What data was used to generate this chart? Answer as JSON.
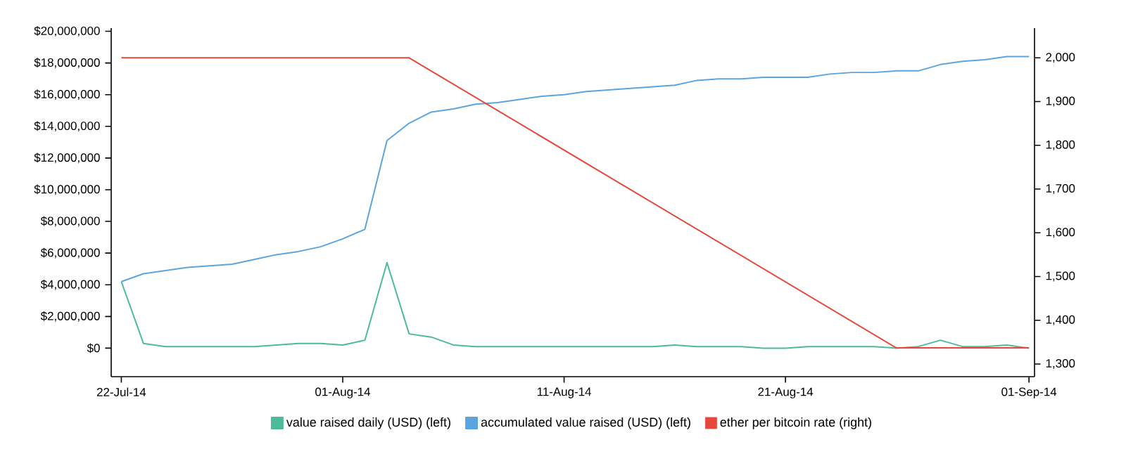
{
  "chart_data": {
    "type": "line",
    "legend": "bottom",
    "grid": false,
    "xlim": [
      "2014-07-21T13:00",
      "2014-09-01T06:00"
    ],
    "xticks": [
      {
        "value": "2014-07-22",
        "label": "22-Jul-14"
      },
      {
        "value": "2014-08-01",
        "label": "01-Aug-14"
      },
      {
        "value": "2014-08-11",
        "label": "11-Aug-14"
      },
      {
        "value": "2014-08-21",
        "label": "21-Aug-14"
      },
      {
        "value": "2014-09-01",
        "label": "01-Sep-14"
      }
    ],
    "ylim": [
      -1800000,
      20200000
    ],
    "yticks": [
      {
        "value": 0,
        "label": "$0"
      },
      {
        "value": 2000000,
        "label": "$2,000,000"
      },
      {
        "value": 4000000,
        "label": "$4,000,000"
      },
      {
        "value": 6000000,
        "label": "$6,000,000"
      },
      {
        "value": 8000000,
        "label": "$8,000,000"
      },
      {
        "value": 10000000,
        "label": "$10,000,000"
      },
      {
        "value": 12000000,
        "label": "$12,000,000"
      },
      {
        "value": 14000000,
        "label": "$14,000,000"
      },
      {
        "value": 16000000,
        "label": "$16,000,000"
      },
      {
        "value": 18000000,
        "label": "$18,000,000"
      },
      {
        "value": 20000000,
        "label": "$20,000,000"
      }
    ],
    "y2lim": [
      1271,
      2068
    ],
    "y2ticks": [
      {
        "value": 1300,
        "label": "1,300"
      },
      {
        "value": 1400,
        "label": "1,400"
      },
      {
        "value": 1500,
        "label": "1,500"
      },
      {
        "value": 1600,
        "label": "1,600"
      },
      {
        "value": 1700,
        "label": "1,700"
      },
      {
        "value": 1800,
        "label": "1,800"
      },
      {
        "value": 1900,
        "label": "1,900"
      },
      {
        "value": 2000,
        "label": "2,000"
      }
    ],
    "x": [
      "2014-07-22",
      "2014-07-23",
      "2014-07-24",
      "2014-07-25",
      "2014-07-26",
      "2014-07-27",
      "2014-07-28",
      "2014-07-29",
      "2014-07-30",
      "2014-07-31",
      "2014-08-01",
      "2014-08-02",
      "2014-08-03",
      "2014-08-04",
      "2014-08-05",
      "2014-08-06",
      "2014-08-07",
      "2014-08-08",
      "2014-08-09",
      "2014-08-10",
      "2014-08-11",
      "2014-08-12",
      "2014-08-13",
      "2014-08-14",
      "2014-08-15",
      "2014-08-16",
      "2014-08-17",
      "2014-08-18",
      "2014-08-19",
      "2014-08-20",
      "2014-08-21",
      "2014-08-22",
      "2014-08-23",
      "2014-08-24",
      "2014-08-25",
      "2014-08-26",
      "2014-08-27",
      "2014-08-28",
      "2014-08-29",
      "2014-08-30",
      "2014-08-31",
      "2014-09-01"
    ],
    "series": [
      {
        "name": "value raised daily (USD) (left)",
        "color": "#4dbb9a",
        "values": [
          4200000,
          300000,
          100000,
          100000,
          100000,
          100000,
          100000,
          200000,
          300000,
          300000,
          200000,
          500000,
          5400000,
          900000,
          700000,
          200000,
          100000,
          100000,
          100000,
          100000,
          100000,
          100000,
          100000,
          100000,
          100000,
          200000,
          100000,
          100000,
          100000,
          0,
          0,
          100000,
          100000,
          100000,
          100000,
          0,
          100000,
          500000,
          100000,
          100000,
          200000,
          0
        ]
      },
      {
        "name": "accumulated value raised (USD) (left)",
        "color": "#5aa5e0",
        "values": [
          4200000,
          4700000,
          4900000,
          5100000,
          5200000,
          5300000,
          5600000,
          5900000,
          6100000,
          6400000,
          6900000,
          7500000,
          13100000,
          14200000,
          14900000,
          15100000,
          15400000,
          15500000,
          15700000,
          15900000,
          16000000,
          16200000,
          16300000,
          16400000,
          16500000,
          16600000,
          16900000,
          17000000,
          17000000,
          17100000,
          17100000,
          17100000,
          17300000,
          17400000,
          17400000,
          17500000,
          17500000,
          17900000,
          18100000,
          18200000,
          18400000,
          18400000
        ]
      },
      {
        "name": "ether per bitcoin rate (right)",
        "color": "#e5473a",
        "axis": "y2",
        "x": [
          "2014-07-22",
          "2014-08-04",
          "2014-08-26",
          "2014-09-01"
        ],
        "values": [
          2000,
          2000,
          1337,
          1337
        ]
      }
    ]
  }
}
